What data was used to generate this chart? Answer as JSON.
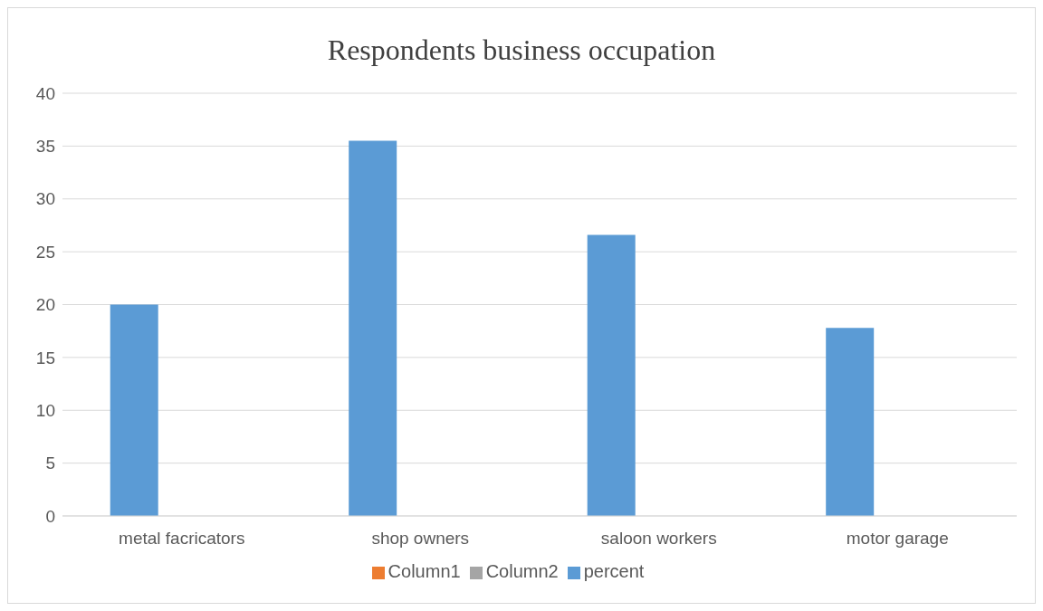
{
  "chart_data": {
    "type": "bar",
    "title": "Respondents business occupation",
    "categories": [
      "metal facricators",
      "shop owners",
      "saloon workers",
      "motor garage"
    ],
    "series": [
      {
        "name": "percent",
        "color": "#5b9bd5",
        "values": [
          20,
          35.5,
          26.6,
          17.8
        ]
      },
      {
        "name": "Column1",
        "color": "#ed7d31",
        "values": [
          null,
          null,
          null,
          null
        ]
      },
      {
        "name": "Column2",
        "color": "#a5a5a5",
        "values": [
          null,
          null,
          null,
          null
        ]
      }
    ],
    "ylim": [
      0,
      40
    ],
    "yticks": [
      0,
      5,
      10,
      15,
      20,
      25,
      30,
      35,
      40
    ],
    "grid": "y",
    "legend": "bottom"
  }
}
